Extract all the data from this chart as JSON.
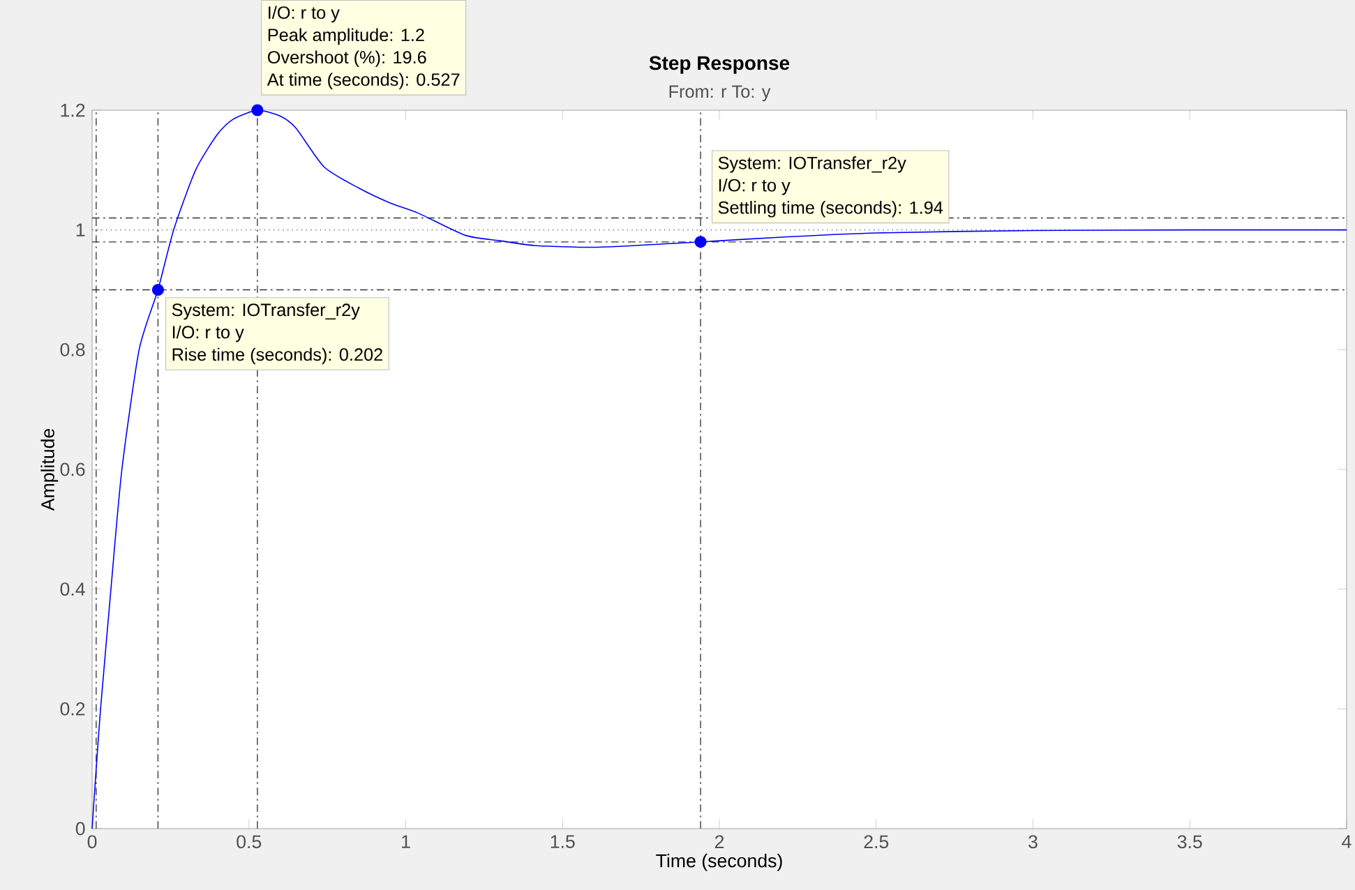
{
  "chart_data": {
    "type": "line",
    "title": "Step Response",
    "subtitle": "From: r  To: y",
    "xlabel": "Time (seconds)",
    "ylabel": "Amplitude",
    "xlim": [
      0,
      4
    ],
    "ylim": [
      0,
      1.2
    ],
    "xticks": [
      0,
      0.5,
      1,
      1.5,
      2,
      2.5,
      3,
      3.5,
      4
    ],
    "yticks": [
      0,
      0.2,
      0.4,
      0.6,
      0.8,
      1,
      1.2
    ],
    "grid": false,
    "series": [
      {
        "type": "line",
        "color": "#0000ff",
        "marker": "none",
        "x": [
          0,
          0.013,
          0.027,
          0.06,
          0.095,
          0.15,
          0.21,
          0.26,
          0.33,
          0.4,
          0.45,
          0.527,
          0.6,
          0.65,
          0.74,
          0.85,
          0.95,
          1.04,
          1.19,
          1.3,
          1.41,
          1.6,
          1.8,
          1.94,
          2.2,
          2.5,
          3,
          3.5,
          4
        ],
        "values": [
          0,
          0.1,
          0.2,
          0.4,
          0.6,
          0.8,
          0.9,
          1.0,
          1.1,
          1.16,
          1.185,
          1.2,
          1.19,
          1.17,
          1.105,
          1.07,
          1.045,
          1.028,
          0.991,
          0.982,
          0.974,
          0.971,
          0.976,
          0.98,
          0.988,
          0.995,
          0.999,
          1.0,
          1.0
        ]
      },
      {
        "type": "scatter",
        "color": "#0000ff",
        "marker": "circle",
        "x": [
          0.21,
          0.527,
          1.94
        ],
        "values": [
          0.9,
          1.2,
          0.98
        ]
      }
    ],
    "ref_lines": [
      {
        "axis": "y",
        "value": 1.02,
        "line_style": "dashdot",
        "color": "#333333"
      },
      {
        "axis": "y",
        "value": 0.98,
        "line_style": "dashdot",
        "color": "#333333"
      },
      {
        "axis": "y",
        "value": 1,
        "line_style": "dotted",
        "color": "#555555"
      },
      {
        "axis": "y",
        "value": 0.9,
        "line_style": "dashdot",
        "color": "#333333"
      },
      {
        "axis": "x",
        "value": 0.013,
        "line_style": "dashdot",
        "color": "#333333"
      },
      {
        "axis": "x",
        "value": 0.21,
        "line_style": "dashdot",
        "color": "#333333"
      },
      {
        "axis": "x",
        "value": 0.527,
        "line_style": "dashdot",
        "color": "#333333"
      },
      {
        "axis": "x",
        "value": 1.94,
        "line_style": "dashdot",
        "color": "#333333"
      }
    ],
    "annotations": [
      "I/O: r to y",
      "Peak amplitude: 1.2",
      "Overshoot (%): 19.6",
      "At time (seconds): 0.527",
      "System: IOTransfer_r2y",
      "I/O: r to y",
      "Settling time (seconds): 1.94",
      "System: IOTransfer_r2y",
      "I/O: r to y",
      "Rise time (seconds): 0.202"
    ]
  }
}
